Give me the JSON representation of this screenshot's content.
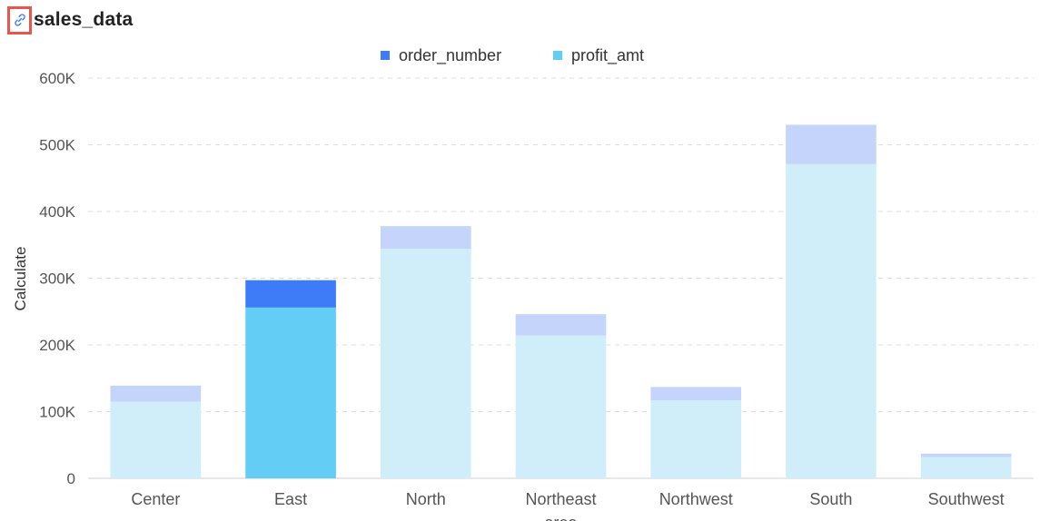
{
  "header": {
    "title": "sales_data",
    "icon": "link-icon"
  },
  "chart_data": {
    "type": "bar",
    "stacked": true,
    "categories": [
      "Center",
      "East",
      "North",
      "Northeast",
      "Northwest",
      "South",
      "Southwest"
    ],
    "series": [
      {
        "name": "profit_amt",
        "values": [
          115000,
          256000,
          344000,
          214000,
          117000,
          471000,
          32000
        ],
        "color": "#63cdf5",
        "faded_color": "#d0eefa"
      },
      {
        "name": "order_number",
        "values": [
          24000,
          41000,
          34000,
          32000,
          20000,
          59000,
          5000
        ],
        "color": "#3e7cf7",
        "faded_color": "#c5d4fb"
      }
    ],
    "highlighted_category": "East",
    "xlabel": "area",
    "ylabel": "Calculate",
    "ylim": [
      0,
      600000
    ],
    "yticks": [
      0,
      100000,
      200000,
      300000,
      400000,
      500000,
      600000
    ],
    "ytick_labels": [
      "0",
      "100K",
      "200K",
      "300K",
      "400K",
      "500K",
      "600K"
    ],
    "legend_order": [
      "order_number",
      "profit_amt"
    ],
    "legend_position": "top-center",
    "grid": "horizontal-dashed"
  }
}
